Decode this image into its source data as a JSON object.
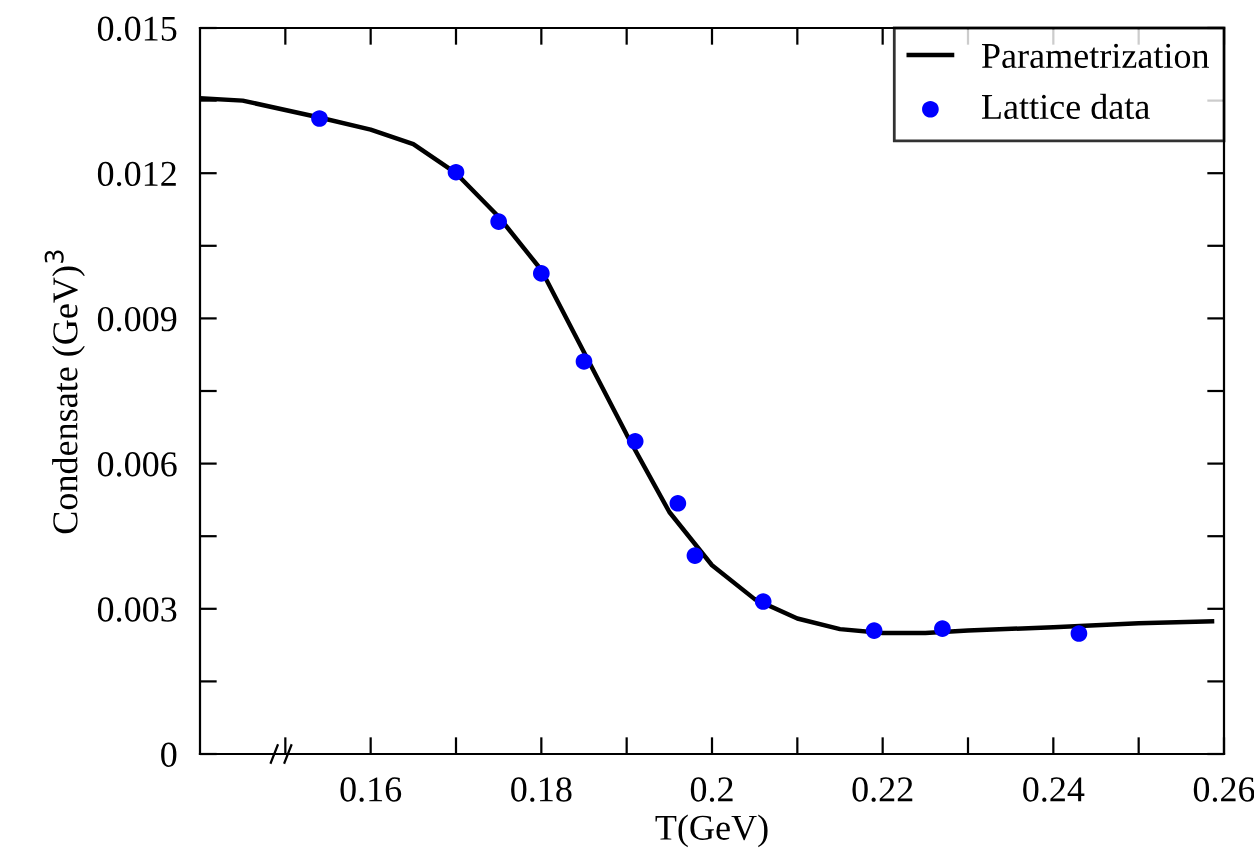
{
  "chart_data": {
    "type": "line",
    "xlabel": "T(GeV)",
    "ylabel": "Condensate (GeV)$^{3}$",
    "xlim": [
      0.14,
      0.26
    ],
    "ylim": [
      0,
      0.015
    ],
    "xticks": [
      {
        "value": 0.15,
        "label": null
      },
      0.16,
      {
        "value": 0.17,
        "label": null
      },
      0.18,
      {
        "value": 0.19,
        "label": null
      },
      0.2,
      {
        "value": 0.21,
        "label": null
      },
      0.22,
      {
        "value": 0.23,
        "label": null
      },
      0.24,
      {
        "value": 0.25,
        "label": null
      },
      0.26
    ],
    "yticks": [
      0,
      {
        "value": 0.0015,
        "label": null
      },
      0.003,
      {
        "value": 0.0045,
        "label": null
      },
      0.006,
      {
        "value": 0.0075,
        "label": null
      },
      0.009,
      {
        "value": 0.0105,
        "label": null
      },
      0.012,
      {
        "value": 0.0135,
        "label": null
      },
      0.015
    ],
    "grid": false,
    "legend": "top right",
    "series": [
      {
        "name": "Parametrization",
        "color": "#000000",
        "marker": "none",
        "line_style": "solid",
        "x": [
          0.14,
          0.145,
          0.154,
          0.16,
          0.165,
          0.17,
          0.175,
          0.18,
          0.185,
          0.19,
          0.195,
          0.2,
          0.205,
          0.21,
          0.215,
          0.22,
          0.225,
          0.23,
          0.24,
          0.25,
          0.2586
        ],
        "values": [
          0.01355,
          0.0135,
          0.01315,
          0.0129,
          0.0126,
          0.012,
          0.0111,
          0.01,
          0.0083,
          0.0066,
          0.005,
          0.0039,
          0.0032,
          0.0028,
          0.00258,
          0.0025,
          0.0025,
          0.00255,
          0.00262,
          0.0027,
          0.00274
        ]
      },
      {
        "name": "Lattice data",
        "type": "scatter",
        "color": "#0000ff",
        "marker": "circle",
        "x": [
          0.154,
          0.17,
          0.175,
          0.18,
          0.185,
          0.191,
          0.196,
          0.198,
          0.206,
          0.219,
          0.227,
          0.243
        ],
        "values": [
          0.01313,
          0.01202,
          0.011,
          0.00993,
          0.00811,
          0.00646,
          0.00518,
          0.0041,
          0.00315,
          0.00255,
          0.00259,
          0.00249
        ]
      }
    ]
  }
}
